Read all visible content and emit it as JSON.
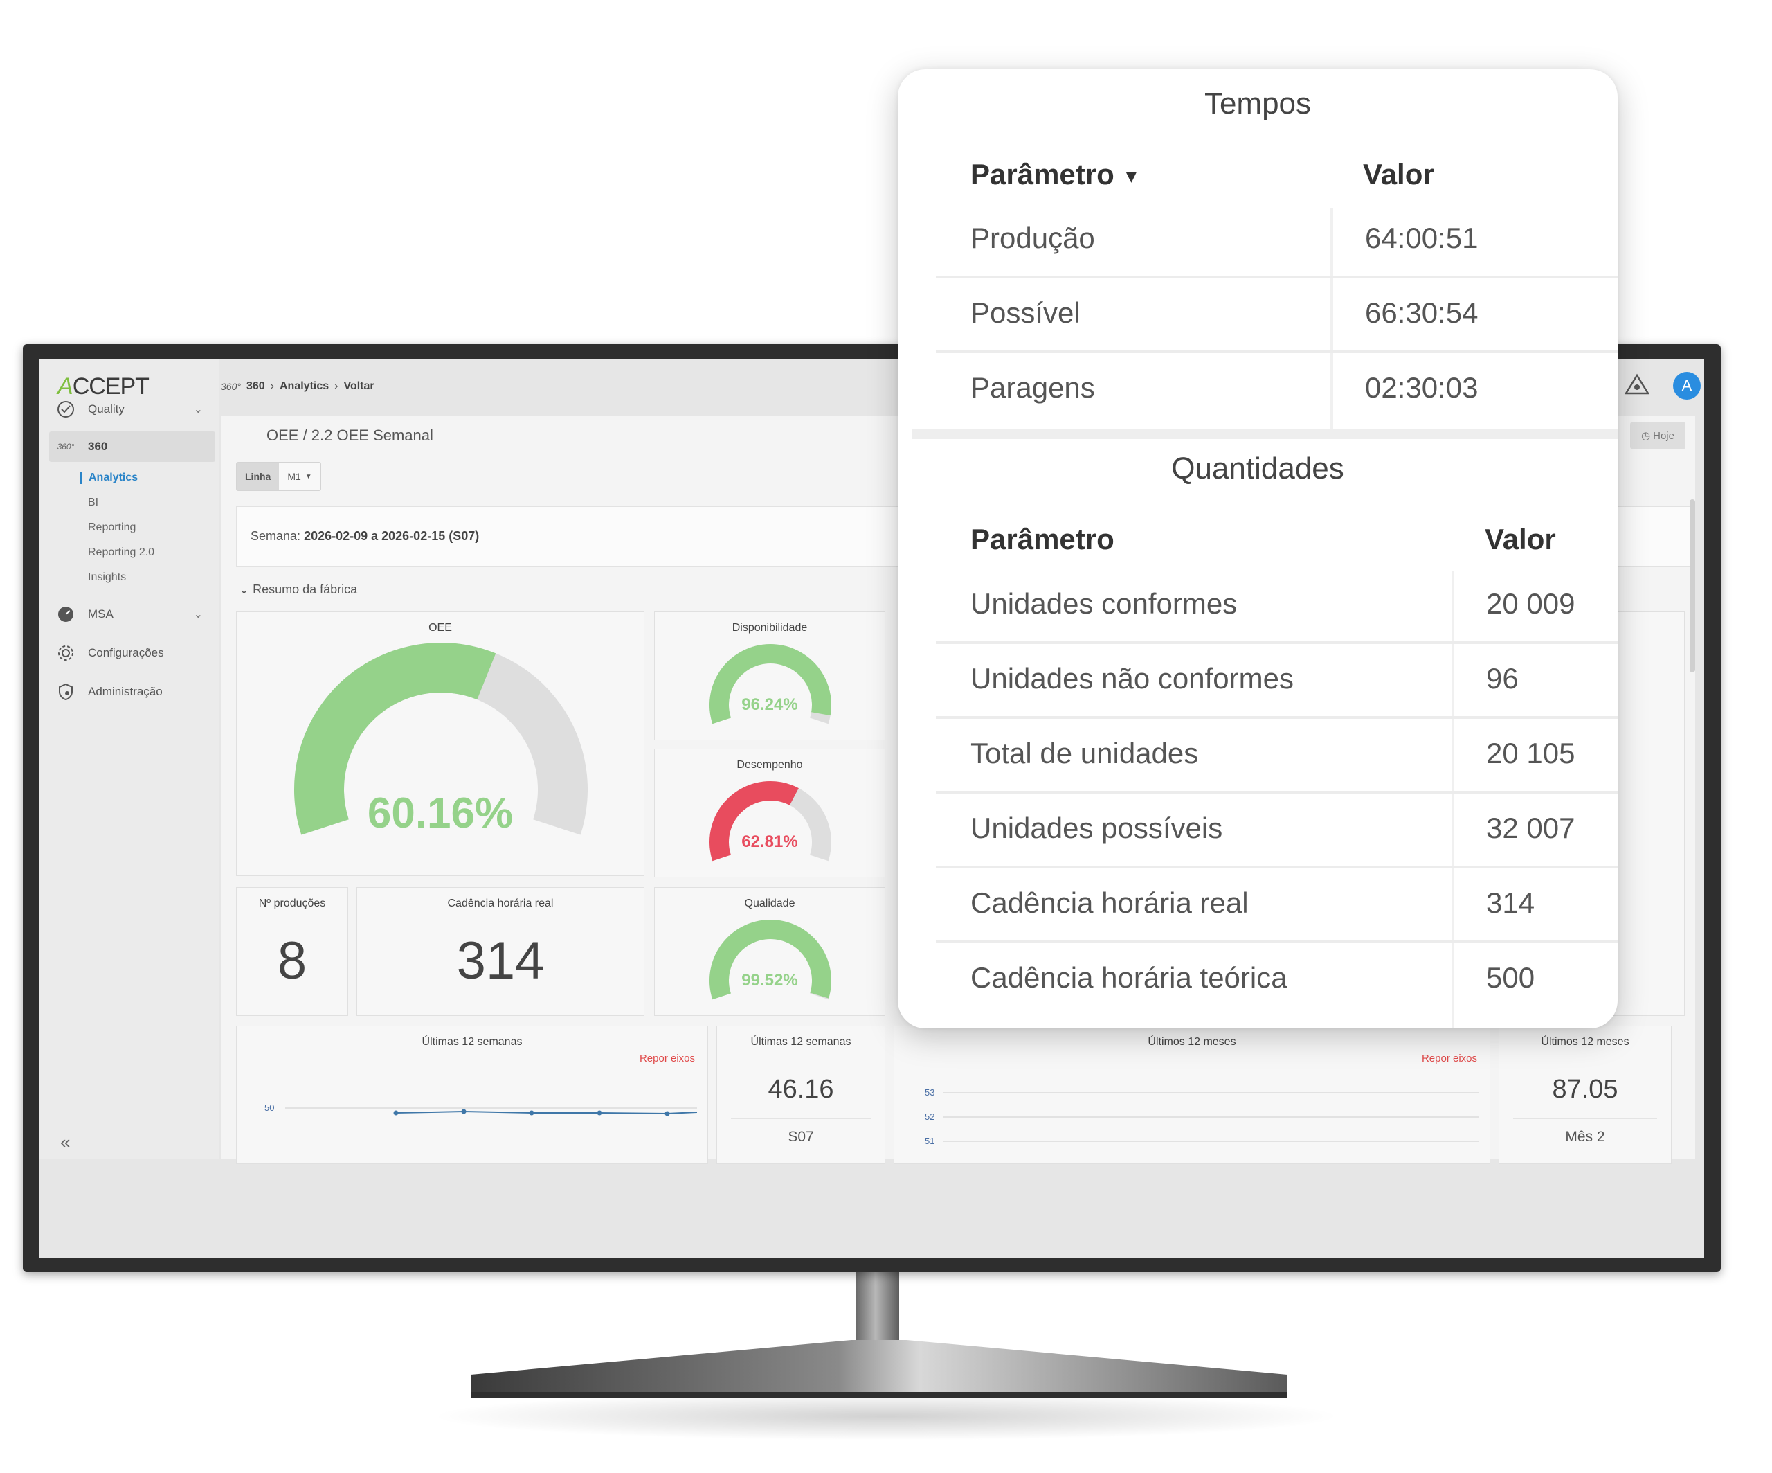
{
  "app": {
    "logo": "ACCEPT",
    "breadcrumb": {
      "prefix_icon": "360°",
      "items": [
        "360",
        "Analytics",
        "Voltar"
      ]
    },
    "user_initial": "A"
  },
  "sidebar": {
    "items": [
      {
        "label": "Quality",
        "icon": "check-circle-icon",
        "expandable": true
      },
      {
        "label": "360",
        "icon": "360-icon",
        "active": true
      },
      {
        "label": "MSA",
        "icon": "gauge-icon",
        "expandable": true
      },
      {
        "label": "Configurações",
        "icon": "gear-icon"
      },
      {
        "label": "Administração",
        "icon": "shield-icon"
      }
    ],
    "subitems": [
      "Analytics",
      "BI",
      "Reporting",
      "Reporting 2.0",
      "Insights"
    ],
    "collapse_label": "«"
  },
  "page": {
    "title": "OEE / 2.2 OEE Semanal",
    "today_button": "Hoje",
    "filter": {
      "label": "Linha",
      "value": "M1"
    },
    "week": {
      "label": "Semana:",
      "value": "2026-02-09 a 2026-02-15 (S07)"
    },
    "section": "Resumo da fábrica"
  },
  "kpis": {
    "oee": {
      "title": "OEE",
      "value_text": "60.16%",
      "value": 0.6016,
      "color": "#95d28a"
    },
    "availability": {
      "title": "Disponibilidade",
      "value_text": "96.24%",
      "value": 0.9624,
      "color": "#95d28a"
    },
    "performance": {
      "title": "Desempenho",
      "value_text": "62.81%",
      "value": 0.6281,
      "color": "#e84c5e"
    },
    "quality": {
      "title": "Qualidade",
      "value_text": "99.52%",
      "value": 0.9952,
      "color": "#95d28a"
    },
    "productions": {
      "title": "Nº produções",
      "value": "8"
    },
    "cadence": {
      "title": "Cadência horária real",
      "value": "314"
    }
  },
  "trends": {
    "weeks_chart": {
      "title": "Últimas 12 semanas",
      "reset": "Repor eixos",
      "ytick": "50"
    },
    "weeks_value": {
      "title": "Últimas 12 semanas",
      "value": "46.16",
      "label": "S07"
    },
    "months_chart": {
      "title": "Últimos 12 meses",
      "reset": "Repor eixos",
      "yticks": [
        "53",
        "52",
        "51"
      ]
    },
    "months_value": {
      "title": "Últimos 12 meses",
      "value": "87.05",
      "label": "Mês 2"
    }
  },
  "popup": {
    "tempos": {
      "title": "Tempos",
      "col_param": "Parâmetro",
      "col_value": "Valor",
      "rows": [
        {
          "param": "Produção",
          "value": "64:00:51"
        },
        {
          "param": "Possível",
          "value": "66:30:54"
        },
        {
          "param": "Paragens",
          "value": "02:30:03"
        }
      ]
    },
    "quantidades": {
      "title": "Quantidades",
      "col_param": "Parâmetro",
      "col_value": "Valor",
      "rows": [
        {
          "param": "Unidades conformes",
          "value": "20 009"
        },
        {
          "param": "Unidades não conformes",
          "value": "96"
        },
        {
          "param": "Total de unidades",
          "value": "20 105"
        },
        {
          "param": "Unidades possíveis",
          "value": "32 007"
        },
        {
          "param": "Cadência horária real",
          "value": "314"
        },
        {
          "param": "Cadência horária teórica",
          "value": "500"
        }
      ]
    }
  }
}
